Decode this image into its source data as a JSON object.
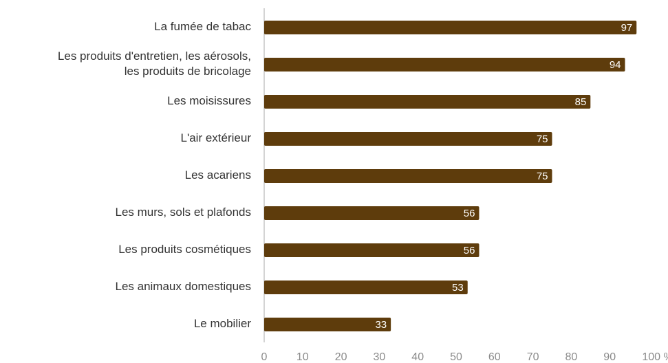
{
  "chart_data": {
    "type": "barh",
    "categories": [
      "La fumée de tabac",
      "Les produits d'entretien, les aérosols,\nles produits de bricolage",
      "Les moisissures",
      "L'air extérieur",
      "Les acariens",
      "Les murs, sols et plafonds",
      "Les produits cosmétiques",
      "Les animaux domestiques",
      "Le mobilier"
    ],
    "values": [
      97,
      94,
      85,
      75,
      75,
      56,
      56,
      53,
      33
    ],
    "color": "#5e3c0c",
    "xlim": [
      0,
      100
    ],
    "xticks": [
      0,
      10,
      20,
      30,
      40,
      50,
      60,
      70,
      80,
      90,
      {
        "value": 100,
        "label": "100 %"
      }
    ],
    "grid": false
  }
}
